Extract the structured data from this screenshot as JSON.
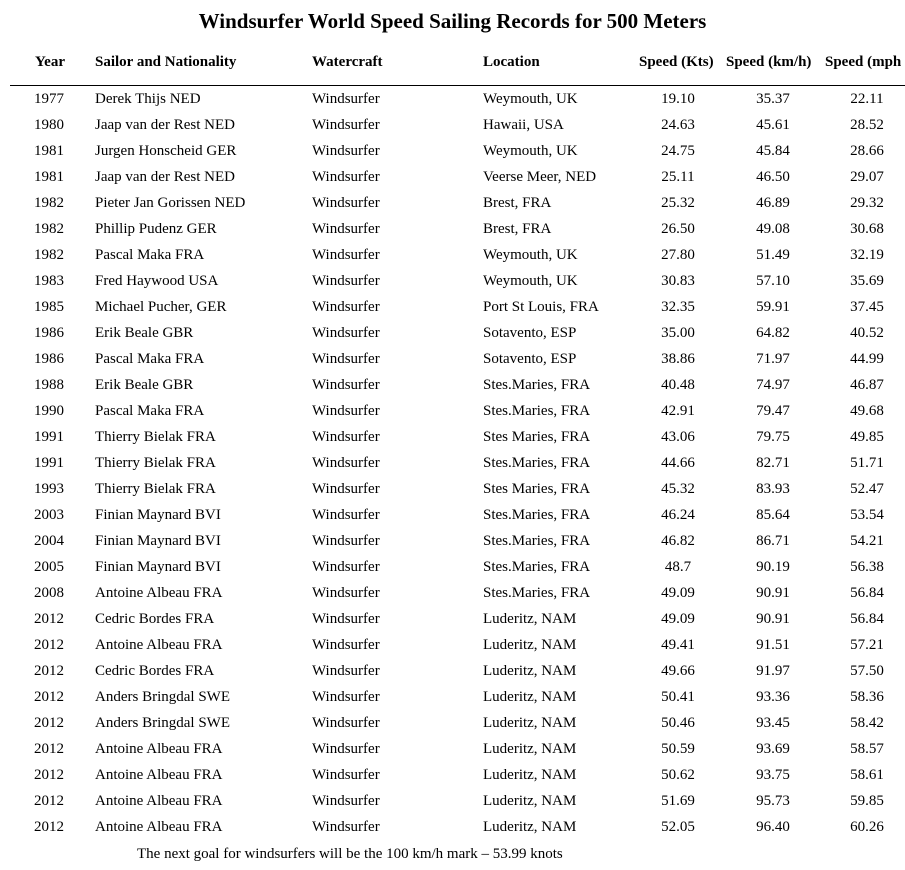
{
  "title": "Windsurfer World Speed Sailing Records for 500 Meters",
  "columns": [
    "Year",
    "Sailor and Nationality",
    "Watercraft",
    "Location",
    "Speed (Kts)",
    "Speed (km/h)",
    "Speed (mph"
  ],
  "rows": [
    [
      "1977",
      "Derek Thijs NED",
      "Windsurfer",
      "Weymouth, UK",
      "19.10",
      "35.37",
      "22.11"
    ],
    [
      "1980",
      "Jaap van der Rest NED",
      "Windsurfer",
      "Hawaii, USA",
      "24.63",
      "45.61",
      "28.52"
    ],
    [
      "1981",
      "Jurgen Honscheid GER",
      "Windsurfer",
      "Weymouth, UK",
      "24.75",
      "45.84",
      "28.66"
    ],
    [
      "1981",
      "Jaap van der Rest NED",
      "Windsurfer",
      "Veerse Meer, NED",
      "25.11",
      "46.50",
      "29.07"
    ],
    [
      "1982",
      "Pieter Jan Gorissen NED",
      "Windsurfer",
      "Brest, FRA",
      "25.32",
      "46.89",
      "29.32"
    ],
    [
      "1982",
      "Phillip Pudenz GER",
      "Windsurfer",
      "Brest, FRA",
      "26.50",
      "49.08",
      "30.68"
    ],
    [
      "1982",
      "Pascal Maka FRA",
      "Windsurfer",
      "Weymouth, UK",
      "27.80",
      "51.49",
      "32.19"
    ],
    [
      "1983",
      "Fred Haywood USA",
      "Windsurfer",
      "Weymouth, UK",
      "30.83",
      "57.10",
      "35.69"
    ],
    [
      "1985",
      "Michael Pucher, GER",
      "Windsurfer",
      "Port St Louis, FRA",
      "32.35",
      "59.91",
      "37.45"
    ],
    [
      "1986",
      "Erik Beale GBR",
      "Windsurfer",
      "Sotavento, ESP",
      "35.00",
      "64.82",
      "40.52"
    ],
    [
      "1986",
      "Pascal Maka FRA",
      "Windsurfer",
      "Sotavento, ESP",
      "38.86",
      "71.97",
      "44.99"
    ],
    [
      "1988",
      "Erik Beale GBR",
      "Windsurfer",
      "Stes.Maries, FRA",
      "40.48",
      "74.97",
      "46.87"
    ],
    [
      "1990",
      "Pascal Maka FRA",
      "Windsurfer",
      "Stes.Maries, FRA",
      "42.91",
      "79.47",
      "49.68"
    ],
    [
      "1991",
      "Thierry Bielak FRA",
      "Windsurfer",
      "Stes Maries, FRA",
      "43.06",
      "79.75",
      "49.85"
    ],
    [
      "1991",
      "Thierry Bielak FRA",
      "Windsurfer",
      "Stes.Maries, FRA",
      "44.66",
      "82.71",
      "51.71"
    ],
    [
      "1993",
      "Thierry Bielak FRA",
      "Windsurfer",
      "Stes Maries, FRA",
      "45.32",
      "83.93",
      "52.47"
    ],
    [
      "2003",
      "Finian Maynard BVI",
      "Windsurfer",
      "Stes.Maries, FRA",
      "46.24",
      "85.64",
      "53.54"
    ],
    [
      "2004",
      "Finian Maynard BVI",
      "Windsurfer",
      "Stes.Maries, FRA",
      "46.82",
      "86.71",
      "54.21"
    ],
    [
      "2005",
      "Finian Maynard BVI",
      "Windsurfer",
      "Stes.Maries, FRA",
      "48.7",
      "90.19",
      "56.38"
    ],
    [
      "2008",
      "Antoine Albeau FRA",
      "Windsurfer",
      "Stes.Maries, FRA",
      "49.09",
      "90.91",
      "56.84"
    ],
    [
      "2012",
      "Cedric Bordes FRA",
      "Windsurfer",
      "Luderitz, NAM",
      "49.09",
      "90.91",
      "56.84"
    ],
    [
      "2012",
      "Antoine Albeau FRA",
      "Windsurfer",
      "Luderitz, NAM",
      "49.41",
      "91.51",
      "57.21"
    ],
    [
      "2012",
      "Cedric Bordes FRA",
      "Windsurfer",
      "Luderitz, NAM",
      "49.66",
      "91.97",
      "57.50"
    ],
    [
      "2012",
      "Anders Bringdal SWE",
      "Windsurfer",
      "Luderitz, NAM",
      "50.41",
      "93.36",
      "58.36"
    ],
    [
      "2012",
      "Anders Bringdal SWE",
      "Windsurfer",
      "Luderitz, NAM",
      "50.46",
      "93.45",
      "58.42"
    ],
    [
      "2012",
      "Antoine Albeau FRA",
      "Windsurfer",
      "Luderitz, NAM",
      "50.59",
      "93.69",
      "58.57"
    ],
    [
      "2012",
      "Antoine Albeau FRA",
      "Windsurfer",
      "Luderitz, NAM",
      "50.62",
      "93.75",
      "58.61"
    ],
    [
      "2012",
      "Antoine Albeau FRA",
      "Windsurfer",
      "Luderitz, NAM",
      "51.69",
      "95.73",
      "59.85"
    ],
    [
      "2012",
      "Antoine Albeau FRA",
      "Windsurfer",
      "Luderitz, NAM",
      "52.05",
      "96.40",
      "60.26"
    ]
  ],
  "footnote": "The next goal for windsurfers will be the 100 km/h mark – 53.99 knots"
}
